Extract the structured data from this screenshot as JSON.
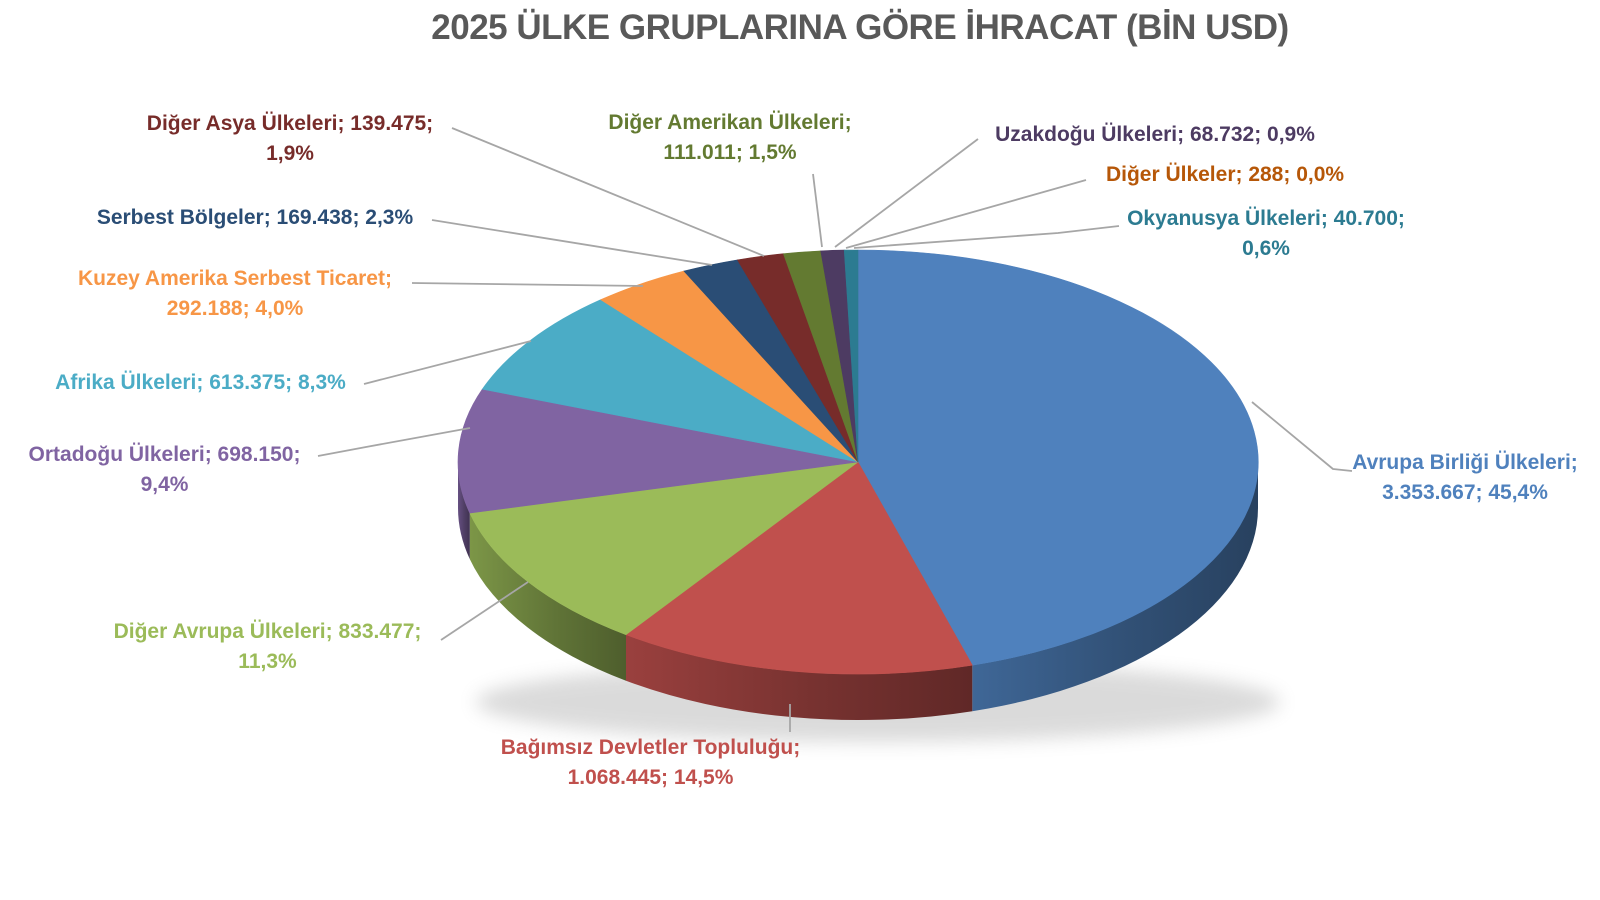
{
  "title": "2025 ÜLKE GRUPLARINA GÖRE İHRACAT (BİN USD)",
  "background_color": "#FFFFFF",
  "title_color": "#595959",
  "leader_line_color": "#A6A6A6",
  "chart_data": {
    "type": "pie",
    "title": "2025 ÜLKE GRUPLARINA GÖRE İHRACAT (BİN USD)",
    "unit": "BİN USD",
    "style": "3d-pie",
    "legend": "none",
    "label_format": "{name}; {value}; {pct}",
    "series": [
      {
        "name": "Avrupa Birliği Ülkeleri",
        "value": "3.353.667",
        "value_num": 3353667,
        "pct": "45,4%",
        "color": "#4F81BD"
      },
      {
        "name": "Bağımsız Devletler Topluluğu",
        "value": "1.068.445",
        "value_num": 1068445,
        "pct": "14,5%",
        "color": "#C0504D"
      },
      {
        "name": "Diğer Avrupa Ülkeleri",
        "value": "833.477",
        "value_num": 833477,
        "pct": "11,3%",
        "color": "#9BBB59"
      },
      {
        "name": "Ortadoğu Ülkeleri",
        "value": "698.150",
        "value_num": 698150,
        "pct": "9,4%",
        "color": "#8064A2"
      },
      {
        "name": "Afrika Ülkeleri",
        "value": "613.375",
        "value_num": 613375,
        "pct": "8,3%",
        "color": "#4BACC6"
      },
      {
        "name": "Kuzey Amerika Serbest Ticaret",
        "value": "292.188",
        "value_num": 292188,
        "pct": "4,0%",
        "color": "#F79646"
      },
      {
        "name": "Serbest Bölgeler",
        "value": "169.438",
        "value_num": 169438,
        "pct": "2,3%",
        "color": "#2A4D75"
      },
      {
        "name": "Diğer Asya Ülkeleri",
        "value": "139.475",
        "value_num": 139475,
        "pct": "1,9%",
        "color": "#772C2A"
      },
      {
        "name": "Diğer Amerikan Ülkeleri",
        "value": "111.011",
        "value_num": 111011,
        "pct": "1,5%",
        "color": "#637A31"
      },
      {
        "name": "Uzakdoğu Ülkeleri",
        "value": "68.732",
        "value_num": 68732,
        "pct": "0,9%",
        "color": "#4D3B62"
      },
      {
        "name": "Diğer Ülkeler",
        "value": "288",
        "value_num": 288,
        "pct": "0,0%",
        "color": "#B65708"
      },
      {
        "name": "Okyanusya Ülkeleri",
        "value": "40.700",
        "value_num": 40700,
        "pct": "0,6%",
        "color": "#2C7B91"
      }
    ]
  }
}
